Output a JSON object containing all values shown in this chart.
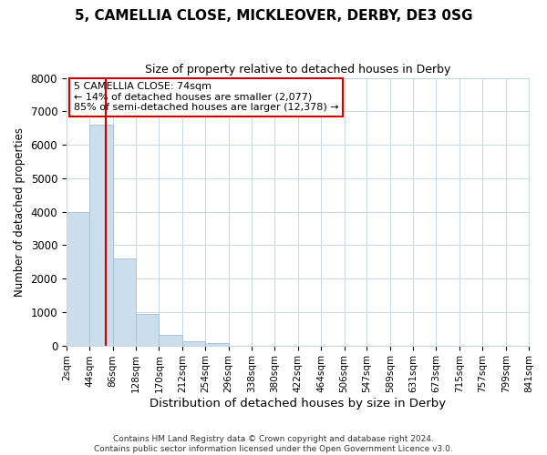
{
  "title": "5, CAMELLIA CLOSE, MICKLEOVER, DERBY, DE3 0SG",
  "subtitle": "Size of property relative to detached houses in Derby",
  "xlabel": "Distribution of detached houses by size in Derby",
  "ylabel": "Number of detached properties",
  "bin_edges": [
    2,
    44,
    86,
    128,
    170,
    212,
    254,
    296,
    338,
    380,
    422,
    464,
    506,
    547,
    589,
    631,
    673,
    715,
    757,
    799,
    841
  ],
  "bin_labels": [
    "2sqm",
    "44sqm",
    "86sqm",
    "128sqm",
    "170sqm",
    "212sqm",
    "254sqm",
    "296sqm",
    "338sqm",
    "380sqm",
    "422sqm",
    "464sqm",
    "506sqm",
    "547sqm",
    "589sqm",
    "631sqm",
    "673sqm",
    "715sqm",
    "757sqm",
    "799sqm",
    "841sqm"
  ],
  "bar_heights": [
    4000,
    6600,
    2600,
    950,
    320,
    130,
    60,
    0,
    0,
    0,
    0,
    0,
    0,
    0,
    0,
    0,
    0,
    0,
    0,
    0
  ],
  "bar_color": "#ccdded",
  "bar_edgecolor": "#aac4d8",
  "property_line_x": 74,
  "property_line_color": "#cc0000",
  "ylim": [
    0,
    8000
  ],
  "yticks": [
    0,
    1000,
    2000,
    3000,
    4000,
    5000,
    6000,
    7000,
    8000
  ],
  "annotation_title": "5 CAMELLIA CLOSE: 74sqm",
  "annotation_line1": "← 14% of detached houses are smaller (2,077)",
  "annotation_line2": "85% of semi-detached houses are larger (12,378) →",
  "annotation_box_color": "#ffffff",
  "annotation_box_edgecolor": "#cc0000",
  "footer_line1": "Contains HM Land Registry data © Crown copyright and database right 2024.",
  "footer_line2": "Contains public sector information licensed under the Open Government Licence v3.0.",
  "background_color": "#ffffff",
  "grid_color": "#c8d8e4"
}
